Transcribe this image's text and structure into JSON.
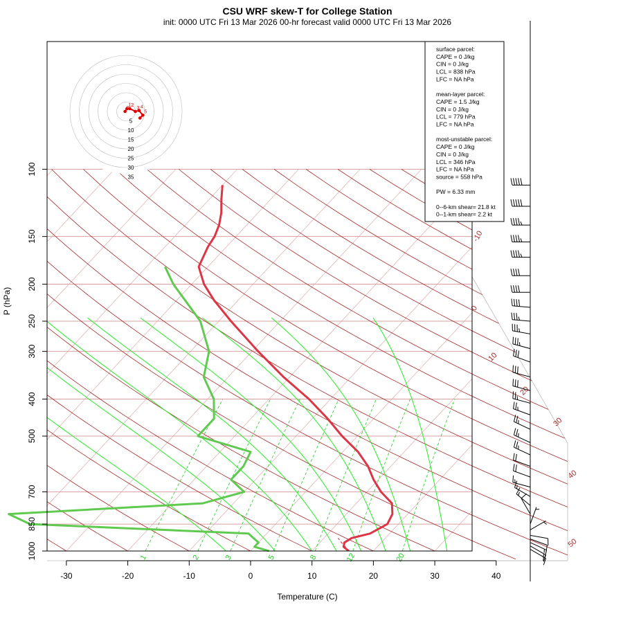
{
  "chart_data": {
    "type": "line",
    "title": "CSU WRF skew-T for College Station",
    "subtitle": "init: 0000 UTC Fri 13 Mar 2026     00-hr forecast valid 0000 UTC Fri 13 Mar 2026",
    "xlabel": "Temperature (C)",
    "ylabel": "P (hPa)",
    "x_ticks": [
      -30,
      -20,
      -10,
      0,
      10,
      20,
      30,
      40
    ],
    "y_ticks": [
      100,
      150,
      200,
      250,
      300,
      400,
      500,
      700,
      850,
      1000
    ],
    "grid": true,
    "series": [
      {
        "color": "#dc3545",
        "p": [
          1000,
          975,
          950,
          925,
          900,
          850,
          800,
          750,
          700,
          650,
          600,
          550,
          500,
          450,
          400,
          350,
          300,
          250,
          220,
          200,
          180,
          160,
          150,
          140,
          130,
          120,
          110
        ],
        "t": [
          16.0,
          14.5,
          14.0,
          14.5,
          16.8,
          18.2,
          17.5,
          15.8,
          12.3,
          9.2,
          6.3,
          2.5,
          -2.5,
          -7.5,
          -13.5,
          -21.0,
          -29.0,
          -38.0,
          -44.0,
          -48.0,
          -51.5,
          -53.0,
          -53.5,
          -54.5,
          -56.0,
          -58.0,
          -60.0
        ]
      },
      {
        "color": "#5fca4f",
        "p": [
          1000,
          975,
          950,
          900,
          850,
          800,
          750,
          700,
          650,
          600,
          550,
          500,
          450,
          400,
          350,
          300,
          250,
          200,
          180
        ],
        "t": [
          3.0,
          0.0,
          0.0,
          -3.0,
          -40.0,
          -45.0,
          -15.0,
          -10.0,
          -14.0,
          -14.0,
          -15.0,
          -26.0,
          -26.0,
          -29.0,
          -34.0,
          -37.0,
          -43.0,
          -53.0,
          -57.0
        ]
      },
      {
        "color": "#dc3545",
        "p": [
          1000,
          975,
          950,
          925
        ],
        "t": [
          16.0,
          14.8,
          13.5,
          12.3
        ]
      }
    ],
    "dry_adiabat_labels": [
      "-10",
      "0",
      "10",
      "20",
      "30",
      "40",
      "50"
    ],
    "mixing_ratio_labels": [
      "1",
      "2",
      "3",
      "5",
      "8",
      "12",
      "20"
    ],
    "hodograph": {
      "ring_labels": [
        "5",
        "10",
        "15",
        "20",
        "25",
        "30",
        "35"
      ],
      "points": [
        {
          "label": "5",
          "u": 9.0,
          "v": -2.0
        },
        {
          "label": "4",
          "u": 7.0,
          "v": 0.5
        },
        {
          "label": "3",
          "u": 5.0,
          "v": 0.0
        },
        {
          "label": "2",
          "u": 2.0,
          "v": 1.5
        },
        {
          "label": "1",
          "u": 0.5,
          "v": 1.5
        },
        {
          "label": "0",
          "u": -0.5,
          "v": 0.0
        }
      ],
      "surface_point": {
        "u": 7.5,
        "v": -3.5
      }
    },
    "wind_barbs": [
      {
        "p": 110,
        "speed_kt": 50,
        "dir_deg": 270
      },
      {
        "p": 125,
        "speed_kt": 50,
        "dir_deg": 270
      },
      {
        "p": 140,
        "speed_kt": 45,
        "dir_deg": 270
      },
      {
        "p": 155,
        "speed_kt": 45,
        "dir_deg": 270
      },
      {
        "p": 170,
        "speed_kt": 45,
        "dir_deg": 270
      },
      {
        "p": 190,
        "speed_kt": 40,
        "dir_deg": 270
      },
      {
        "p": 210,
        "speed_kt": 40,
        "dir_deg": 270
      },
      {
        "p": 230,
        "speed_kt": 40,
        "dir_deg": 275
      },
      {
        "p": 250,
        "speed_kt": 35,
        "dir_deg": 275
      },
      {
        "p": 270,
        "speed_kt": 35,
        "dir_deg": 280
      },
      {
        "p": 295,
        "speed_kt": 35,
        "dir_deg": 285
      },
      {
        "p": 320,
        "speed_kt": 30,
        "dir_deg": 290
      },
      {
        "p": 350,
        "speed_kt": 30,
        "dir_deg": 285
      },
      {
        "p": 380,
        "speed_kt": 30,
        "dir_deg": 285
      },
      {
        "p": 410,
        "speed_kt": 25,
        "dir_deg": 285
      },
      {
        "p": 440,
        "speed_kt": 25,
        "dir_deg": 290
      },
      {
        "p": 480,
        "speed_kt": 25,
        "dir_deg": 295
      },
      {
        "p": 520,
        "speed_kt": 25,
        "dir_deg": 295
      },
      {
        "p": 560,
        "speed_kt": 25,
        "dir_deg": 295
      },
      {
        "p": 600,
        "speed_kt": 20,
        "dir_deg": 290
      },
      {
        "p": 640,
        "speed_kt": 20,
        "dir_deg": 290
      },
      {
        "p": 680,
        "speed_kt": 15,
        "dir_deg": 285
      },
      {
        "p": 720,
        "speed_kt": 15,
        "dir_deg": 300
      },
      {
        "p": 760,
        "speed_kt": 15,
        "dir_deg": 310
      },
      {
        "p": 800,
        "speed_kt": 10,
        "dir_deg": 330
      },
      {
        "p": 850,
        "speed_kt": 5,
        "dir_deg": 20
      },
      {
        "p": 880,
        "speed_kt": 5,
        "dir_deg": 60
      },
      {
        "p": 910,
        "speed_kt": 10,
        "dir_deg": 100
      },
      {
        "p": 930,
        "speed_kt": 10,
        "dir_deg": 110
      },
      {
        "p": 950,
        "speed_kt": 15,
        "dir_deg": 115
      },
      {
        "p": 970,
        "speed_kt": 15,
        "dir_deg": 120
      },
      {
        "p": 990,
        "speed_kt": 15,
        "dir_deg": 120
      }
    ],
    "info_box": {
      "lines": [
        "surface parcel:",
        "CAPE = 0 J/kg",
        "CIN = 0 J/kg",
        "LCL = 838 hPa",
        "LFC = NA hPa",
        "",
        "mean-layer parcel:",
        "CAPE = 1.5 J/kg",
        "CIN = 0 J/kg",
        "LCL = 779 hPa",
        "LFC = NA hPa",
        "",
        "most-unstable parcel:",
        "CAPE = 0 J/kg",
        "CIN = 0 J/kg",
        "LCL = 346 hPa",
        "LFC = NA hPa",
        "source = 558 hPa",
        "",
        "PW =  6.33 mm",
        "",
        "0--6-km shear= 21.8 kt",
        "0--1-km shear= 2.2 kt"
      ]
    },
    "colors": {
      "isobar": "#d9a0a0",
      "isotherm": "#d9a0a0",
      "dry_adiabat": "#a52a2a",
      "moist_adiabat": "#22ee22",
      "mixing_ratio": "#22cc22",
      "temperature": "#dc3545",
      "dewpoint": "#5fca4f",
      "hodograph": "#e00000"
    }
  }
}
